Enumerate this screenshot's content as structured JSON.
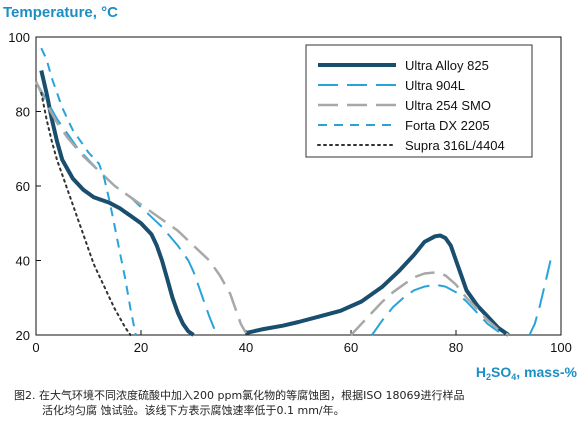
{
  "chart_data": {
    "type": "line",
    "ylabel": "Temperature, °C",
    "xlabel_parts": {
      "base": "H",
      "sub1": "2",
      "mid": "SO",
      "sub2": "4",
      "tail": ", mass-%"
    },
    "xlim": [
      0,
      100
    ],
    "ylim": [
      20,
      100
    ],
    "xticks": [
      0,
      20,
      40,
      60,
      80,
      100
    ],
    "yticks": [
      20,
      40,
      60,
      80,
      100
    ],
    "grid": false,
    "legend_position": "top-right",
    "series": [
      {
        "name": "Ultra Alloy 825",
        "color": "#1a4e6e",
        "dash": "solid",
        "width": 4,
        "segments": [
          [
            [
              1,
              91
            ],
            [
              2,
              85
            ],
            [
              3,
              78
            ],
            [
              4,
              72
            ],
            [
              5,
              67
            ],
            [
              7,
              62
            ],
            [
              9,
              59
            ],
            [
              11,
              57
            ],
            [
              14,
              55.5
            ],
            [
              16,
              54
            ],
            [
              18,
              52
            ],
            [
              20,
              50
            ],
            [
              22,
              47
            ],
            [
              23,
              44
            ],
            [
              24,
              40
            ],
            [
              25,
              35
            ],
            [
              26,
              30
            ],
            [
              27,
              26
            ],
            [
              28,
              23
            ],
            [
              29,
              21
            ],
            [
              30,
              20
            ]
          ],
          [
            [
              40,
              20.5
            ],
            [
              43,
              21.5
            ],
            [
              47,
              22.5
            ],
            [
              50,
              23.5
            ],
            [
              54,
              25
            ],
            [
              58,
              26.5
            ],
            [
              62,
              29
            ],
            [
              66,
              33
            ],
            [
              69,
              37
            ],
            [
              72,
              41.5
            ],
            [
              74,
              45
            ],
            [
              76,
              46.5
            ],
            [
              77,
              46.7
            ],
            [
              78,
              46
            ],
            [
              79,
              44
            ],
            [
              80,
              40
            ],
            [
              81,
              36
            ],
            [
              82,
              32
            ],
            [
              84,
              28
            ],
            [
              86,
              25
            ],
            [
              88,
              22
            ],
            [
              90,
              20
            ]
          ]
        ]
      },
      {
        "name": "Ultra 904L",
        "color": "#2aa3d8",
        "dash": "long",
        "width": 2,
        "segments": [
          [
            [
              0,
              88
            ],
            [
              2,
              83
            ],
            [
              4,
              78
            ],
            [
              6,
              74
            ],
            [
              8,
              70
            ],
            [
              10,
              67
            ],
            [
              12,
              64
            ],
            [
              15,
              60
            ],
            [
              18,
              57
            ],
            [
              21,
              53
            ],
            [
              24,
              49
            ],
            [
              27,
              44
            ],
            [
              29,
              40
            ],
            [
              30,
              37
            ],
            [
              31,
              33
            ],
            [
              32,
              29
            ],
            [
              33,
              25
            ],
            [
              34,
              21.5
            ],
            [
              34.5,
              20
            ]
          ],
          [
            [
              64,
              20
            ],
            [
              66,
              24
            ],
            [
              68,
              27.5
            ],
            [
              70,
              30
            ],
            [
              72,
              32
            ],
            [
              74,
              33
            ],
            [
              76,
              33.5
            ],
            [
              78,
              33
            ],
            [
              80,
              31.5
            ],
            [
              82,
              29
            ],
            [
              84,
              26
            ],
            [
              86,
              23
            ],
            [
              88,
              21
            ],
            [
              89,
              20
            ]
          ],
          [
            [
              94,
              20
            ],
            [
              95,
              23
            ],
            [
              96,
              28
            ],
            [
              97,
              34
            ],
            [
              98,
              40
            ]
          ]
        ]
      },
      {
        "name": "Ultra 254 SMO",
        "color": "#a8a8a8",
        "dash": "long",
        "width": 2.5,
        "segments": [
          [
            [
              0,
              88
            ],
            [
              2,
              82
            ],
            [
              4,
              77
            ],
            [
              6,
              73
            ],
            [
              9,
              68
            ],
            [
              12,
              64
            ],
            [
              15,
              60
            ],
            [
              18,
              57
            ],
            [
              21,
              54
            ],
            [
              24,
              51
            ],
            [
              27,
              48
            ],
            [
              30,
              44
            ],
            [
              33,
              40
            ],
            [
              35,
              36
            ],
            [
              37,
              31
            ],
            [
              38,
              27
            ],
            [
              39,
              23
            ],
            [
              40,
              20.5
            ]
          ],
          [
            [
              60,
              20
            ],
            [
              62,
              23
            ],
            [
              64,
              26
            ],
            [
              66,
              29
            ],
            [
              68,
              31.5
            ],
            [
              70,
              33.5
            ],
            [
              72,
              35.5
            ],
            [
              74,
              36.5
            ],
            [
              76,
              36.8
            ],
            [
              78,
              36
            ],
            [
              80,
              33.5
            ],
            [
              82,
              30
            ],
            [
              84,
              27
            ],
            [
              86,
              24
            ],
            [
              88,
              21.5
            ],
            [
              90,
              20
            ]
          ]
        ]
      },
      {
        "name": "Forta DX 2205",
        "color": "#2aa3d8",
        "dash": "short",
        "width": 2,
        "segments": [
          [
            [
              1,
              97
            ],
            [
              2,
              94
            ],
            [
              3,
              89
            ],
            [
              4,
              85
            ],
            [
              5,
              81
            ],
            [
              6,
              78
            ],
            [
              7,
              75
            ],
            [
              8,
              73
            ],
            [
              10,
              69
            ],
            [
              12,
              66
            ],
            [
              13,
              62
            ],
            [
              14,
              56
            ],
            [
              15,
              49
            ],
            [
              16,
              42
            ],
            [
              17,
              35
            ],
            [
              18,
              27
            ],
            [
              19,
              20
            ]
          ]
        ]
      },
      {
        "name": "Supra 316L/4404",
        "color": "#333333",
        "dash": "dot",
        "width": 2,
        "segments": [
          [
            [
              1,
              85
            ],
            [
              2,
              78
            ],
            [
              3,
              72
            ],
            [
              4,
              67
            ],
            [
              5,
              63
            ],
            [
              6,
              59
            ],
            [
              7,
              55
            ],
            [
              8,
              51
            ],
            [
              9,
              47
            ],
            [
              10,
              43
            ],
            [
              11,
              39
            ],
            [
              12,
              36
            ],
            [
              13,
              33
            ],
            [
              14,
              30
            ],
            [
              15,
              27
            ],
            [
              16,
              24.5
            ],
            [
              17,
              22
            ],
            [
              18,
              20
            ]
          ]
        ]
      }
    ]
  },
  "caption": {
    "line1": "图2. 在大气环境不同浓度硫酸中加入200 ppm氯化物的等腐蚀图，根据ISO 18069进行样品",
    "line2": "活化均匀腐 蚀试验。该线下方表示腐蚀速率低于0.1 mm/年。"
  }
}
